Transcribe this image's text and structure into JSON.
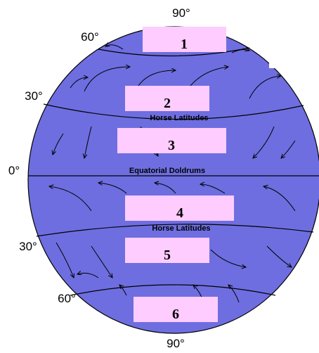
{
  "latitudes": [
    "90°",
    "60°",
    "30°",
    "0°",
    "30°",
    "60°",
    "90°"
  ],
  "boxes": [
    "1",
    "2",
    "3",
    "4",
    "5",
    "6"
  ],
  "zones": [
    "Horse Latitudes",
    "Equatorial Doldrums",
    "Horse Latitudes"
  ]
}
